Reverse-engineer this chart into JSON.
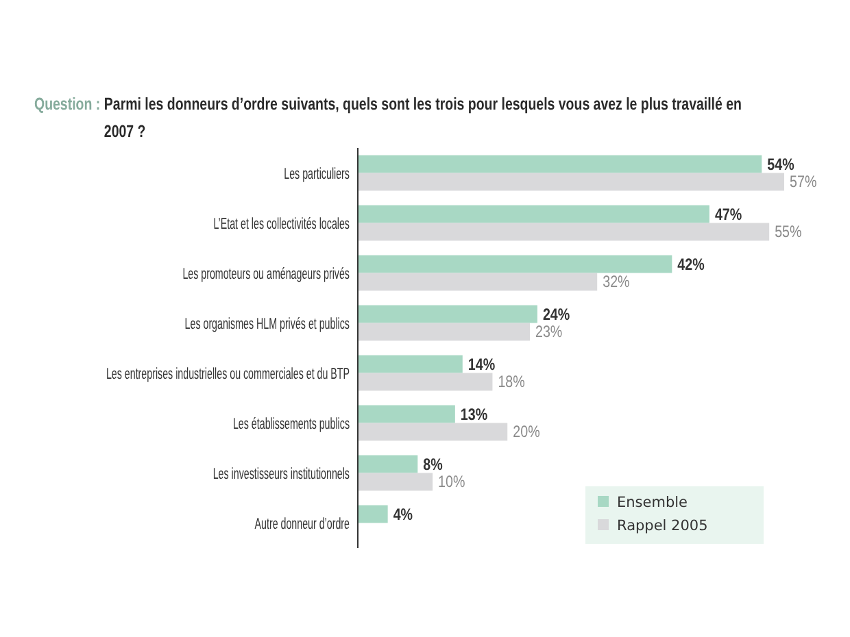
{
  "chart_data": {
    "type": "bar",
    "orientation": "horizontal",
    "title": "Question :",
    "subtitle": "Parmi les donneurs d’ordre suivants, quels sont les trois pour lesquels vous avez le plus travaillé en 2007 ?",
    "categories": [
      "Les particuliers",
      "L’Etat et les collectivités locales",
      "Les promoteurs ou aménageurs privés",
      "Les organismes HLM privés et publics",
      "Les entreprises industrielles ou commerciales et du BTP",
      "Les établissements publics",
      "Les investisseurs institutionnels",
      "Autre donneur d’ordre"
    ],
    "series": [
      {
        "name": "Ensemble",
        "color": "#a8d8c4",
        "values": [
          54,
          47,
          42,
          24,
          14,
          13,
          8,
          4
        ],
        "value_labels": [
          "54%",
          "47%",
          "42%",
          "24%",
          "14%",
          "13%",
          "8%",
          "4%"
        ]
      },
      {
        "name": "Rappel 2005",
        "color": "#d9d9db",
        "values": [
          57,
          55,
          32,
          23,
          18,
          20,
          10,
          null
        ],
        "value_labels": [
          "57%",
          "55%",
          "32%",
          "23%",
          "18%",
          "20%",
          "10%",
          null
        ]
      }
    ],
    "legend": "bottom right"
  }
}
